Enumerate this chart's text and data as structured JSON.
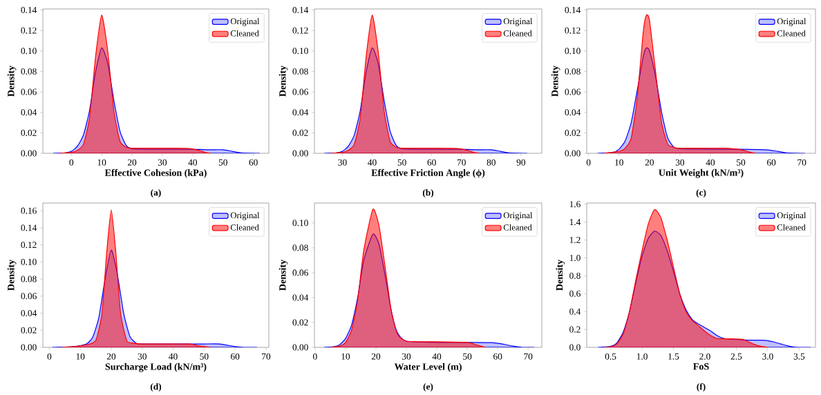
{
  "chart_data": [
    {
      "type": "area",
      "xlabel": "Effective Cohesion (kPa)",
      "ylabel": "Density",
      "annotations": [
        "(a)"
      ],
      "legend": "top right",
      "xlim": [
        -9.4,
        65.1
      ],
      "ylim": [
        0,
        0.141
      ],
      "xticks": [
        0,
        10,
        20,
        30,
        40,
        50,
        60
      ],
      "yticks": [
        {
          "value": 0,
          "label": "0.00"
        },
        {
          "value": 0.02,
          "label": "0.02"
        },
        {
          "value": 0.04,
          "label": "0.04"
        },
        {
          "value": 0.06,
          "label": "0.06"
        },
        {
          "value": 0.08,
          "label": "0.08"
        },
        {
          "value": 0.1,
          "label": "0.10"
        },
        {
          "value": 0.12,
          "label": "0.12"
        },
        {
          "value": 0.14,
          "label": "0.14"
        }
      ],
      "series": [
        {
          "name": "Original",
          "color": "#0000ff",
          "x": [
            -6,
            -2,
            0,
            2,
            4,
            6,
            8,
            10,
            12,
            14,
            16,
            18,
            20,
            25,
            30,
            35,
            40,
            45,
            50,
            53,
            56,
            62
          ],
          "values": [
            0,
            0.0005,
            0.002,
            0.007,
            0.018,
            0.042,
            0.08,
            0.103,
            0.088,
            0.052,
            0.022,
            0.008,
            0.0045,
            0.004,
            0.004,
            0.004,
            0.004,
            0.0035,
            0.0035,
            0.002,
            0.0005,
            0
          ]
        },
        {
          "name": "Cleaned",
          "color": "#ff0000",
          "x": [
            -4,
            0,
            2,
            4,
            6,
            8,
            10,
            12,
            14,
            16,
            18,
            20,
            30,
            38,
            42,
            44,
            46
          ],
          "values": [
            0,
            0.001,
            0.003,
            0.009,
            0.035,
            0.095,
            0.135,
            0.1,
            0.042,
            0.012,
            0.006,
            0.005,
            0.005,
            0.0048,
            0.003,
            0.001,
            0
          ]
        }
      ]
    },
    {
      "type": "area",
      "xlabel": "Effective Friction Angle (ϕ)",
      "ylabel": "Density",
      "annotations": [
        "(b)"
      ],
      "legend": "top right",
      "xlim": [
        20.6,
        97
      ],
      "ylim": [
        0,
        0.141
      ],
      "xticks": [
        30,
        40,
        50,
        60,
        70,
        80,
        90
      ],
      "yticks": [
        {
          "value": 0,
          "label": "0.00"
        },
        {
          "value": 0.02,
          "label": "0.02"
        },
        {
          "value": 0.04,
          "label": "0.04"
        },
        {
          "value": 0.06,
          "label": "0.06"
        },
        {
          "value": 0.08,
          "label": "0.08"
        },
        {
          "value": 0.1,
          "label": "0.10"
        },
        {
          "value": 0.12,
          "label": "0.12"
        },
        {
          "value": 0.14,
          "label": "0.14"
        }
      ],
      "series": [
        {
          "name": "Original",
          "color": "#0000ff",
          "x": [
            24,
            28,
            30,
            32,
            34,
            36,
            38,
            40,
            42,
            44,
            46,
            48,
            50,
            55,
            60,
            65,
            70,
            75,
            80,
            83,
            86,
            92
          ],
          "values": [
            0,
            0.0005,
            0.002,
            0.007,
            0.018,
            0.042,
            0.08,
            0.103,
            0.088,
            0.052,
            0.022,
            0.008,
            0.0045,
            0.004,
            0.004,
            0.004,
            0.004,
            0.0035,
            0.0035,
            0.002,
            0.0005,
            0
          ]
        },
        {
          "name": "Cleaned",
          "color": "#ff0000",
          "x": [
            26,
            30,
            32,
            34,
            36,
            38,
            40,
            42,
            44,
            46,
            48,
            50,
            60,
            68,
            72,
            74,
            76
          ],
          "values": [
            0,
            0.001,
            0.003,
            0.009,
            0.035,
            0.095,
            0.135,
            0.1,
            0.042,
            0.012,
            0.006,
            0.005,
            0.005,
            0.0048,
            0.003,
            0.001,
            0
          ]
        }
      ]
    },
    {
      "type": "area",
      "xlabel": "Unit Weight (kN/m³)",
      "ylabel": "Density",
      "annotations": [
        "(c)"
      ],
      "legend": "top right",
      "xlim": [
        -0.6,
        74.5
      ],
      "ylim": [
        0,
        0.141
      ],
      "xticks": [
        0,
        10,
        20,
        30,
        40,
        50,
        60,
        70
      ],
      "yticks": [
        {
          "value": 0,
          "label": "0.00"
        },
        {
          "value": 0.02,
          "label": "0.02"
        },
        {
          "value": 0.04,
          "label": "0.04"
        },
        {
          "value": 0.06,
          "label": "0.06"
        },
        {
          "value": 0.08,
          "label": "0.08"
        },
        {
          "value": 0.1,
          "label": "0.10"
        },
        {
          "value": 0.12,
          "label": "0.12"
        },
        {
          "value": 0.14,
          "label": "0.14"
        }
      ],
      "series": [
        {
          "name": "Original",
          "color": "#0000ff",
          "x": [
            3,
            8,
            10,
            12,
            14,
            16,
            18,
            19,
            20,
            22,
            24,
            26,
            28,
            30,
            40,
            50,
            58,
            62,
            65,
            71
          ],
          "values": [
            0,
            0.001,
            0.004,
            0.012,
            0.03,
            0.062,
            0.095,
            0.103,
            0.1,
            0.075,
            0.04,
            0.015,
            0.006,
            0.0045,
            0.004,
            0.004,
            0.0035,
            0.002,
            0.0005,
            0
          ]
        },
        {
          "name": "Cleaned",
          "color": "#ff0000",
          "x": [
            5,
            10,
            12,
            14,
            16,
            18,
            19,
            20,
            22,
            24,
            26,
            28,
            30,
            45,
            50,
            53,
            55
          ],
          "values": [
            0,
            0.002,
            0.005,
            0.015,
            0.055,
            0.12,
            0.135,
            0.13,
            0.08,
            0.03,
            0.009,
            0.006,
            0.005,
            0.005,
            0.0035,
            0.0012,
            0
          ]
        }
      ]
    },
    {
      "type": "area",
      "xlabel": "Surcharge Load (kN/m³)",
      "ylabel": "Density",
      "annotations": [
        "(d)"
      ],
      "legend": "top right",
      "xlim": [
        -2.1,
        70.9
      ],
      "ylim": [
        0,
        0.169
      ],
      "xticks": [
        0,
        10,
        20,
        30,
        40,
        50,
        60,
        70
      ],
      "yticks": [
        {
          "value": 0,
          "label": "0.00"
        },
        {
          "value": 0.02,
          "label": "0.02"
        },
        {
          "value": 0.04,
          "label": "0.04"
        },
        {
          "value": 0.06,
          "label": "0.06"
        },
        {
          "value": 0.08,
          "label": "0.08"
        },
        {
          "value": 0.1,
          "label": "0.10"
        },
        {
          "value": 0.12,
          "label": "0.12"
        },
        {
          "value": 0.14,
          "label": "0.14"
        },
        {
          "value": 0.16,
          "label": "0.16"
        }
      ],
      "series": [
        {
          "name": "Original",
          "color": "#0000ff",
          "x": [
            1,
            8,
            12,
            14,
            16,
            18,
            20,
            22,
            24,
            26,
            28,
            30,
            45,
            50,
            55,
            60,
            63,
            67
          ],
          "values": [
            0,
            0.001,
            0.004,
            0.012,
            0.035,
            0.08,
            0.114,
            0.085,
            0.04,
            0.013,
            0.005,
            0.004,
            0.004,
            0.004,
            0.004,
            0.001,
            0,
            0
          ]
        },
        {
          "name": "Cleaned",
          "color": "#ff0000",
          "x": [
            4,
            8,
            12,
            15,
            17,
            18.5,
            20,
            21.5,
            23,
            25,
            27,
            30,
            45,
            48,
            50,
            52
          ],
          "values": [
            0,
            0.001,
            0.003,
            0.008,
            0.04,
            0.11,
            0.161,
            0.11,
            0.04,
            0.008,
            0.005,
            0.004,
            0.004,
            0.002,
            0.001,
            0
          ]
        }
      ]
    },
    {
      "type": "area",
      "xlabel": "Water Level (m)",
      "ylabel": "Density",
      "annotations": [
        "(e)"
      ],
      "legend": "top right",
      "xlim": [
        -0.2,
        74.5
      ],
      "ylim": [
        0,
        0.116
      ],
      "xticks": [
        0,
        10,
        20,
        30,
        40,
        50,
        60,
        70
      ],
      "yticks": [
        {
          "value": 0,
          "label": "0.00"
        },
        {
          "value": 0.02,
          "label": "0.02"
        },
        {
          "value": 0.04,
          "label": "0.04"
        },
        {
          "value": 0.06,
          "label": "0.06"
        },
        {
          "value": 0.08,
          "label": "0.08"
        },
        {
          "value": 0.1,
          "label": "0.10"
        }
      ],
      "series": [
        {
          "name": "Original",
          "color": "#0000ff",
          "x": [
            3,
            6,
            8,
            10,
            12,
            14,
            16,
            19,
            21,
            23,
            25,
            27,
            30,
            40,
            50,
            58,
            62,
            65,
            68,
            72
          ],
          "values": [
            0,
            0.0005,
            0.002,
            0.007,
            0.018,
            0.04,
            0.07,
            0.091,
            0.083,
            0.058,
            0.03,
            0.012,
            0.005,
            0.004,
            0.004,
            0.0038,
            0.0025,
            0.001,
            0,
            0
          ]
        },
        {
          "name": "Cleaned",
          "color": "#ff0000",
          "x": [
            5,
            8,
            10,
            12,
            14,
            16,
            19,
            21,
            23,
            25,
            27,
            30,
            40,
            50,
            53,
            56
          ],
          "values": [
            0,
            0.001,
            0.004,
            0.014,
            0.038,
            0.078,
            0.111,
            0.098,
            0.065,
            0.03,
            0.011,
            0.005,
            0.0045,
            0.004,
            0.002,
            0
          ]
        }
      ]
    },
    {
      "type": "area",
      "xlabel": "FoS",
      "ylabel": "Density",
      "annotations": [
        "(f)"
      ],
      "legend": "top right",
      "xlim": [
        0.12,
        3.76
      ],
      "ylim": [
        0,
        1.613
      ],
      "xticks": [
        0.5,
        {
          "value": 1,
          "label": "1.0"
        },
        1.5,
        {
          "value": 2,
          "label": "2.0"
        },
        2.5,
        {
          "value": 3,
          "label": "3.0"
        },
        3.5
      ],
      "yticks": [
        {
          "value": 0,
          "label": "0.0"
        },
        0.2,
        0.4,
        0.6,
        0.8,
        {
          "value": 1,
          "label": "1.0"
        },
        1.2,
        1.4,
        1.6
      ],
      "series": [
        {
          "name": "Original",
          "color": "#0000ff",
          "x": [
            0.3,
            0.5,
            0.6,
            0.7,
            0.8,
            0.9,
            1.0,
            1.1,
            1.2,
            1.3,
            1.4,
            1.5,
            1.6,
            1.7,
            1.8,
            1.9,
            2.0,
            2.1,
            2.2,
            2.3,
            2.5,
            2.7,
            2.9,
            3.0,
            3.1,
            3.2,
            3.3,
            3.4,
            3.5,
            3.68
          ],
          "values": [
            0,
            0.01,
            0.05,
            0.17,
            0.4,
            0.72,
            1.02,
            1.22,
            1.3,
            1.25,
            1.08,
            0.85,
            0.6,
            0.42,
            0.31,
            0.26,
            0.22,
            0.18,
            0.13,
            0.1,
            0.09,
            0.08,
            0.08,
            0.075,
            0.06,
            0.04,
            0.02,
            0.005,
            0,
            0
          ]
        },
        {
          "name": "Cleaned",
          "color": "#ff0000",
          "x": [
            0.4,
            0.5,
            0.6,
            0.7,
            0.8,
            0.9,
            1.0,
            1.1,
            1.2,
            1.3,
            1.4,
            1.5,
            1.6,
            1.7,
            1.8,
            1.9,
            2.0,
            2.1,
            2.2,
            2.4,
            2.6,
            2.7,
            2.8,
            2.9,
            3.0
          ],
          "values": [
            0,
            0.005,
            0.04,
            0.15,
            0.4,
            0.75,
            1.08,
            1.38,
            1.54,
            1.45,
            1.2,
            0.9,
            0.6,
            0.4,
            0.3,
            0.24,
            0.18,
            0.13,
            0.1,
            0.095,
            0.09,
            0.06,
            0.03,
            0.01,
            0
          ]
        }
      ]
    }
  ]
}
